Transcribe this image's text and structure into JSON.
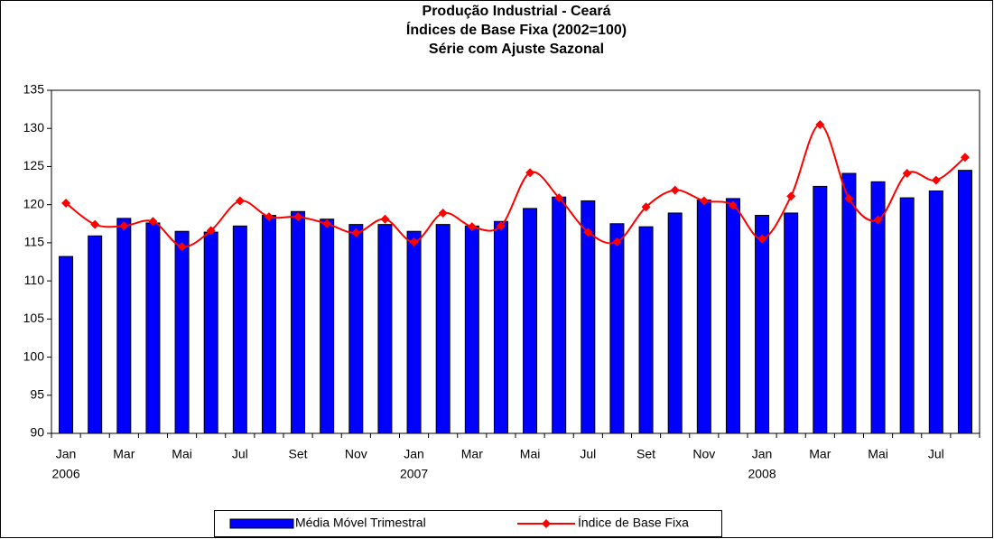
{
  "chart_data": {
    "type": "bar_line",
    "title": [
      "Produção Industrial - Ceará",
      "Índices de Base Fixa (2002=100)",
      "Série com Ajuste Sazonal"
    ],
    "categories": [
      "Jan",
      null,
      "Mar",
      null,
      "Mai",
      null,
      "Jul",
      null,
      "Set",
      null,
      "Nov",
      null,
      "Jan",
      null,
      "Mar",
      null,
      "Mai",
      null,
      "Jul",
      null,
      "Set",
      null,
      "Nov",
      null,
      "Jan",
      null,
      "Mar",
      null,
      "Mai",
      null,
      "Jul",
      null
    ],
    "years": [
      "2006",
      null,
      null,
      null,
      null,
      null,
      null,
      null,
      null,
      null,
      null,
      null,
      "2007",
      null,
      null,
      null,
      null,
      null,
      null,
      null,
      null,
      null,
      null,
      null,
      "2008",
      null,
      null,
      null,
      null,
      null,
      null,
      null
    ],
    "series": [
      {
        "name": "Média Móvel Trimestral",
        "type": "bar",
        "color": "#0000ff",
        "values": [
          113.2,
          115.9,
          118.2,
          117.6,
          116.5,
          116.4,
          117.2,
          118.6,
          119.1,
          118.1,
          117.4,
          117.4,
          116.5,
          117.4,
          117.2,
          117.8,
          119.5,
          121.0,
          120.5,
          117.5,
          117.1,
          118.9,
          120.6,
          120.8,
          118.6,
          118.9,
          122.4,
          124.1,
          123.0,
          120.9,
          121.8,
          124.5
        ]
      },
      {
        "name": "Índice de Base Fixa",
        "type": "line",
        "color": "#ff0000",
        "values": [
          120.2,
          117.4,
          117.2,
          117.8,
          114.5,
          116.6,
          120.5,
          118.4,
          118.4,
          117.5,
          116.3,
          118.1,
          115.1,
          118.9,
          117.1,
          117.2,
          124.2,
          120.9,
          116.4,
          115.1,
          119.7,
          121.9,
          120.5,
          119.9,
          115.5,
          121.1,
          130.5,
          120.8,
          118.0,
          124.1,
          123.2,
          126.2
        ]
      }
    ],
    "ylim": [
      90,
      135
    ],
    "yticks": [
      90,
      95,
      100,
      105,
      110,
      115,
      120,
      125,
      130,
      135
    ],
    "legend": "bottom"
  }
}
